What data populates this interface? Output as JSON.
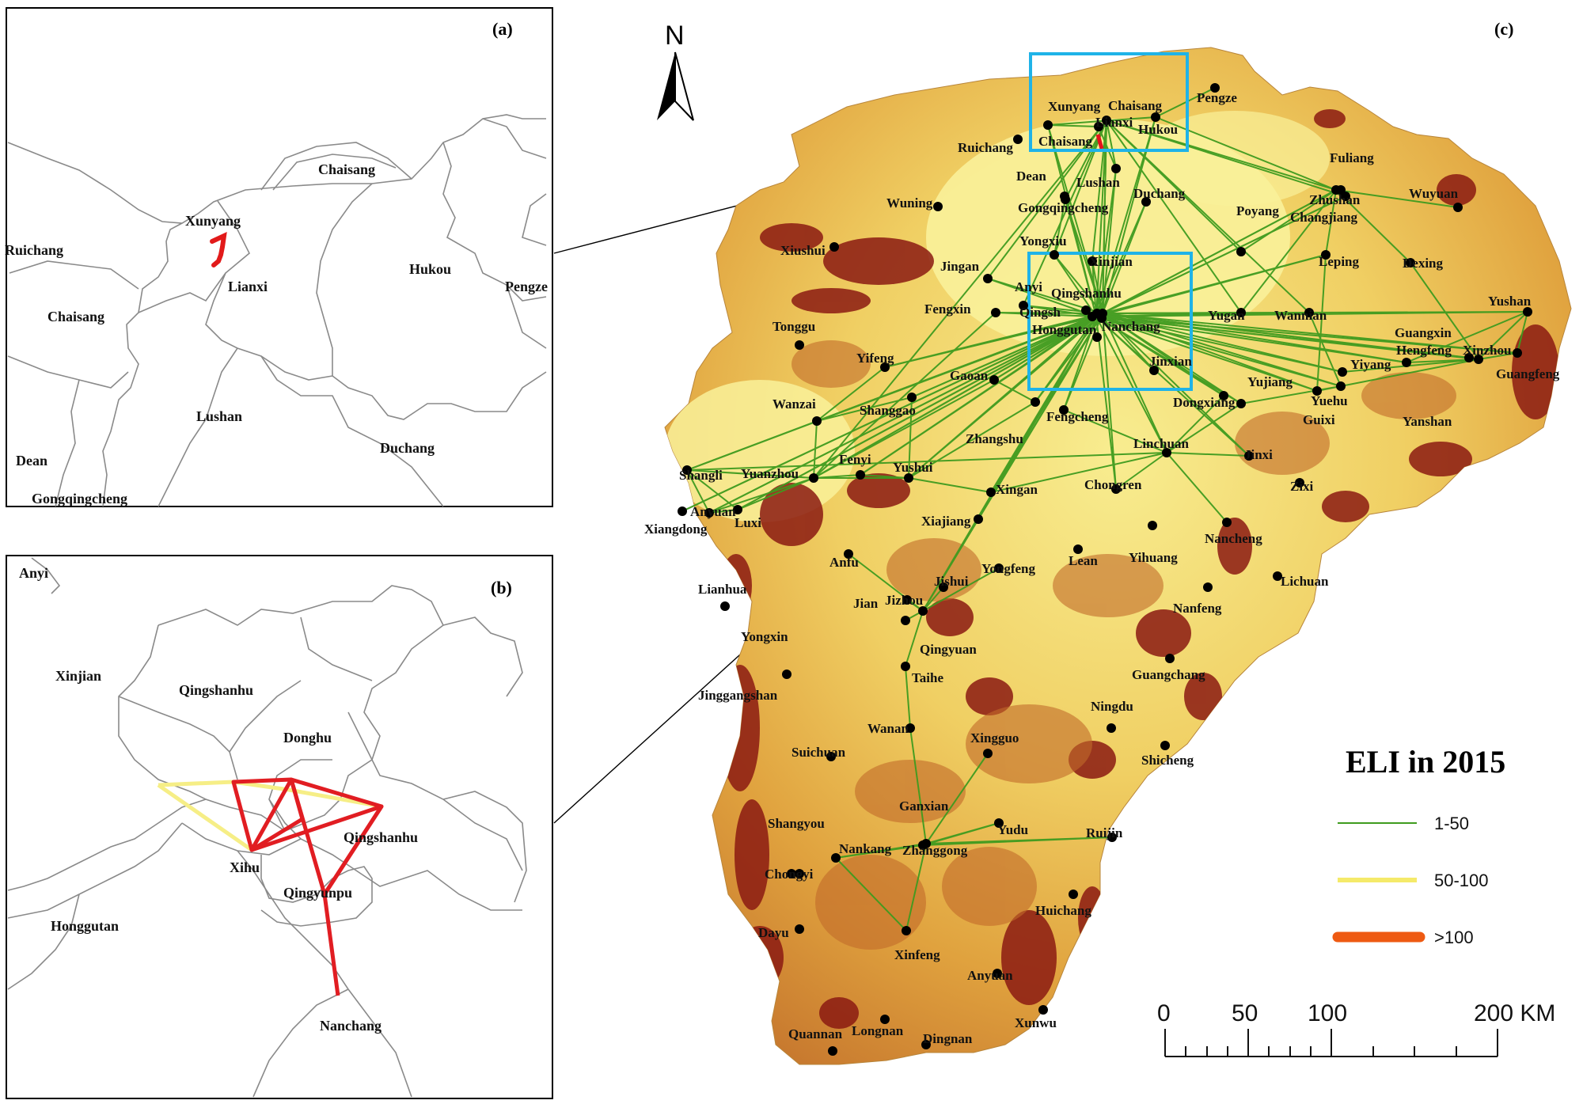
{
  "panels": {
    "a": {
      "letter": "(a)",
      "labels": [
        "Chaisang",
        "Xunyang",
        "Ruichang",
        "Lianxi",
        "Hukou",
        "Pengze",
        "Chaisang",
        "Lushan",
        "Duchang",
        "Dean",
        "Gongqingcheng"
      ]
    },
    "b": {
      "letter": "(b)",
      "labels": [
        "Anyi",
        "Xinjian",
        "Qingshanhu",
        "Donghu",
        "Qingshanhu",
        "Xihu",
        "Qingyunpu",
        "Honggutan",
        "Nanchang"
      ]
    },
    "c": {
      "letter": "(c)",
      "north_label": "N",
      "cities": [
        "Pengze",
        "Xunyang",
        "Chaisang",
        "Lianxi",
        "Hukou",
        "Chaisang",
        "Ruichang",
        "Dean",
        "Lushan",
        "Duchang",
        "Fuliang",
        "Zhushan",
        "Changjiang",
        "Wuyuan",
        "Wuning",
        "Gongqingcheng",
        "Poyang",
        "Xiushui",
        "Yongxiu",
        "Xinjian",
        "Leping",
        "Dexing",
        "Jingan",
        "Anyi",
        "Qingshanhu",
        "Qingsh",
        "Fengxin",
        "Honggutan",
        "Nanchang",
        "Yugan",
        "Wannian",
        "Yushan",
        "Tonggu",
        "Guangxin",
        "Hengfeng",
        "Xinzhou",
        "Yifeng",
        "Jinxian",
        "Yiyang",
        "Guangfeng",
        "Gaoan",
        "Yujiang",
        "Dongxiang",
        "Yuehu",
        "Wanzai",
        "Shanggao",
        "Guixi",
        "Yanshan",
        "Fengcheng",
        "Zhangshu",
        "Linchuan",
        "Jinxi",
        "Shangli",
        "Yuanzhou",
        "Fenyi",
        "Yushui",
        "Xingan",
        "Chongren",
        "Zixi",
        "Anyuan",
        "Luxi",
        "Xiangdong",
        "Xiajiang",
        "Nancheng",
        "Anfu",
        "Yihuang",
        "Lean",
        "Yongfeng",
        "Jishui",
        "Lichuan",
        "Lianhua",
        "Jian",
        "Jizhou",
        "Nanfeng",
        "Yongxin",
        "Qingyuan",
        "Taihe",
        "Guangchang",
        "Jinggangshan",
        "Wanan",
        "Ningdu",
        "Suichuan",
        "Xingguo",
        "Shicheng",
        "Ganxian",
        "Shangyou",
        "Yudu",
        "Ruijin",
        "Nankang",
        "Zhanggong",
        "Chongyi",
        "Huichang",
        "Dayu",
        "Xinfeng",
        "Anyuan",
        "Xunwu",
        "Quannan",
        "Longnan",
        "Dingnan"
      ]
    }
  },
  "legend": {
    "title": "ELI in 2015",
    "items": [
      {
        "label": "1-50",
        "color": "#3f9b1f"
      },
      {
        "label": "50-100",
        "color": "#f5ea6a"
      },
      {
        "label": ">100",
        "color": "#ee5a12"
      }
    ]
  },
  "scale": {
    "labels": [
      "0",
      "50",
      "100",
      "200 KM"
    ]
  },
  "colors": {
    "lowland": "#f7eb8a",
    "midland": "#e8b44a",
    "highland": "#7a1010",
    "flow_low": "#3f9b1f",
    "flow_mid": "#f5ea6a",
    "flow_high": "#e5121a",
    "inset_frame": "#1fb3e8"
  }
}
